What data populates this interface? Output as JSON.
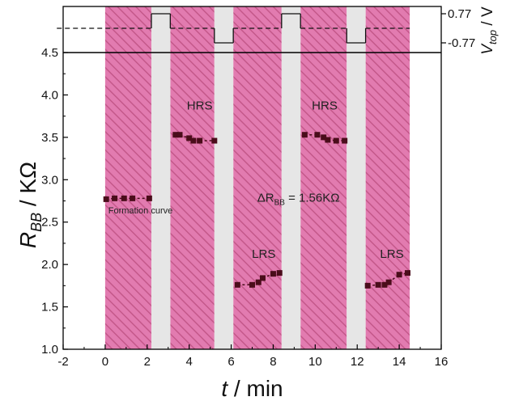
{
  "chart_data": {
    "type": "scatter",
    "xlabel": {
      "italic": "t",
      "rest": " / min"
    },
    "ylabel": {
      "italic": "R",
      "sub": "BB",
      "rest": " / KΩ"
    },
    "top_ylabel": {
      "italic": "V",
      "sub": "top",
      "rest": " / V"
    },
    "xlim": [
      -2,
      16
    ],
    "ylim": [
      1.0,
      4.5
    ],
    "x_ticks": [
      "-2",
      "0",
      "2",
      "4",
      "6",
      "8",
      "10",
      "12",
      "14",
      "16"
    ],
    "y_ticks": [
      "1.0",
      "1.5",
      "2.0",
      "2.5",
      "3.0",
      "3.5",
      "4.0",
      "4.5"
    ],
    "top_ticks": [
      "0.77",
      "-0.77"
    ],
    "top_ylim": [
      -1.2,
      1.2
    ],
    "pulse_bands_x": [
      [
        0,
        2.2
      ],
      [
        3.1,
        5.2
      ],
      [
        6.1,
        8.4
      ],
      [
        9.3,
        11.5
      ],
      [
        12.4,
        14.5
      ]
    ],
    "gap_bands_x": [
      [
        2.2,
        3.1
      ],
      [
        5.2,
        6.1
      ],
      [
        8.4,
        9.3
      ],
      [
        11.5,
        12.4
      ]
    ],
    "vtop_segments": [
      {
        "x": [
          -2.3,
          2.2
        ],
        "v": 0,
        "dashed": true
      },
      {
        "x": [
          2.2,
          3.1
        ],
        "v": 0.77,
        "dashed": false
      },
      {
        "x": [
          3.1,
          5.2
        ],
        "v": 0,
        "dashed": true
      },
      {
        "x": [
          5.2,
          6.1
        ],
        "v": -0.77,
        "dashed": false
      },
      {
        "x": [
          6.1,
          8.4
        ],
        "v": 0,
        "dashed": true
      },
      {
        "x": [
          8.4,
          9.3
        ],
        "v": 0.77,
        "dashed": false
      },
      {
        "x": [
          9.3,
          11.5
        ],
        "v": 0,
        "dashed": true
      },
      {
        "x": [
          11.5,
          12.4
        ],
        "v": -0.77,
        "dashed": false
      },
      {
        "x": [
          12.4,
          14.5
        ],
        "v": 0,
        "dashed": true
      }
    ],
    "series": [
      {
        "segment": "formation",
        "x": [
          0.05,
          0.45,
          0.9,
          1.3,
          2.1
        ],
        "y": [
          2.77,
          2.78,
          2.78,
          2.78,
          2.78
        ]
      },
      {
        "segment": "HRS-1",
        "x": [
          3.35,
          3.55,
          4.0,
          4.2,
          4.5,
          5.2
        ],
        "y": [
          3.53,
          3.53,
          3.49,
          3.46,
          3.46,
          3.46
        ]
      },
      {
        "segment": "LRS-1",
        "x": [
          6.3,
          7.0,
          7.3,
          7.5,
          8.0,
          8.3
        ],
        "y": [
          1.76,
          1.76,
          1.79,
          1.84,
          1.89,
          1.9
        ]
      },
      {
        "segment": "HRS-2",
        "x": [
          9.5,
          10.1,
          10.4,
          10.6,
          11.0,
          11.4
        ],
        "y": [
          3.53,
          3.53,
          3.5,
          3.47,
          3.46,
          3.46
        ]
      },
      {
        "segment": "LRS-2",
        "x": [
          12.5,
          13.0,
          13.3,
          13.5,
          14.0,
          14.4
        ],
        "y": [
          1.75,
          1.76,
          1.76,
          1.79,
          1.88,
          1.9
        ]
      }
    ],
    "annotations": [
      {
        "text": "Formation curve",
        "x": 0.15,
        "y": 2.6
      },
      {
        "text": "HRS",
        "x": 4.5,
        "y": 3.83
      },
      {
        "text": "HRS",
        "x": 10.45,
        "y": 3.83
      },
      {
        "text": "LRS",
        "x": 7.55,
        "y": 2.08
      },
      {
        "text": "LRS",
        "x": 13.65,
        "y": 2.08
      },
      {
        "text": "ΔR",
        "sub": "BB",
        "rest": " = 1.56KΩ",
        "x": 9.2,
        "y": 2.74
      }
    ],
    "colors": {
      "pulse_fill": "#e27bb0",
      "pulse_hatch": "#c05c8a",
      "gap_fill": "#e6e6e6",
      "marker": "#4a0d1b",
      "axis": "#000000"
    },
    "grid": false,
    "legend": "none"
  }
}
